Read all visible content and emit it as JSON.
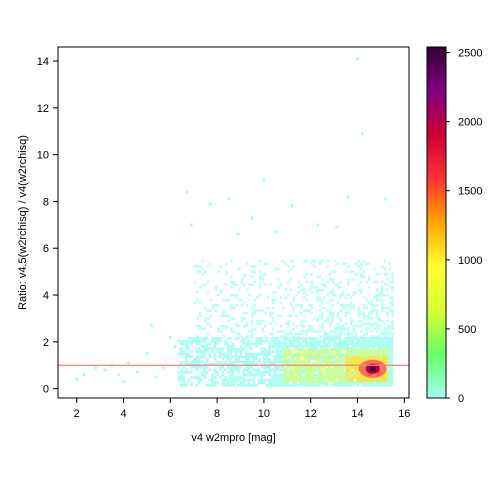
{
  "chart_data": {
    "type": "heatmap",
    "title": "",
    "xlabel": "v4 w2mpro [mag]",
    "ylabel": "Ratio: v4.5(w2rchisq) / v4(w2rchisq)",
    "xlim": [
      1.2,
      16.2
    ],
    "ylim": [
      -0.4,
      14.6
    ],
    "x_ticks": [
      "2",
      "4",
      "6",
      "8",
      "10",
      "12",
      "14",
      "16"
    ],
    "y_ticks": [
      "0",
      "2",
      "4",
      "6",
      "8",
      "10",
      "12",
      "14"
    ],
    "reference_line": {
      "y": 1.0,
      "color": "#f08080"
    },
    "colorbar": {
      "ticks": [
        "0",
        "500",
        "1000",
        "1500",
        "2000",
        "2500"
      ],
      "range": [
        0,
        2500
      ],
      "colors": [
        "#a0fff0",
        "#66ff66",
        "#d8ff33",
        "#ffff33",
        "#ffa500",
        "#ff3333",
        "#cc0033",
        "#800080",
        "#330033"
      ]
    },
    "density_regions": [
      {
        "x": [
          6.3,
          15.5
        ],
        "y": [
          0.1,
          2.2
        ],
        "level": "low"
      },
      {
        "x": [
          7.0,
          15.5
        ],
        "y": [
          2.2,
          5.5
        ],
        "level": "sparse"
      },
      {
        "x": [
          10.8,
          15.3
        ],
        "y": [
          0.3,
          1.7
        ],
        "level": "medium"
      },
      {
        "x": [
          13.5,
          15.2
        ],
        "y": [
          0.3,
          1.4
        ],
        "level": "high"
      },
      {
        "x": [
          14.4,
          14.9
        ],
        "y": [
          0.6,
          1.1
        ],
        "level": "peak"
      }
    ],
    "outliers": [
      [
        14.0,
        14.1
      ],
      [
        14.2,
        10.9
      ],
      [
        10.0,
        8.9
      ],
      [
        13.6,
        8.2
      ],
      [
        8.5,
        8.1
      ],
      [
        6.7,
        8.4
      ],
      [
        7.7,
        7.9
      ],
      [
        11.2,
        7.8
      ],
      [
        15.2,
        8.1
      ],
      [
        9.5,
        7.3
      ],
      [
        12.3,
        7.0
      ],
      [
        6.9,
        7.0
      ],
      [
        10.5,
        6.7
      ],
      [
        8.9,
        6.6
      ],
      [
        13.1,
        6.9
      ],
      [
        2.3,
        0.6
      ],
      [
        2.0,
        0.4
      ],
      [
        3.2,
        0.8
      ],
      [
        3.8,
        0.6
      ],
      [
        4.2,
        1.1
      ],
      [
        4.6,
        0.7
      ],
      [
        5.0,
        1.5
      ],
      [
        5.4,
        0.5
      ],
      [
        5.7,
        0.9
      ],
      [
        5.2,
        2.7
      ],
      [
        6.0,
        2.2
      ],
      [
        4.0,
        0.3
      ],
      [
        3.5,
        1.0
      ],
      [
        2.8,
        0.9
      ],
      [
        6.2,
        1.8
      ]
    ]
  }
}
